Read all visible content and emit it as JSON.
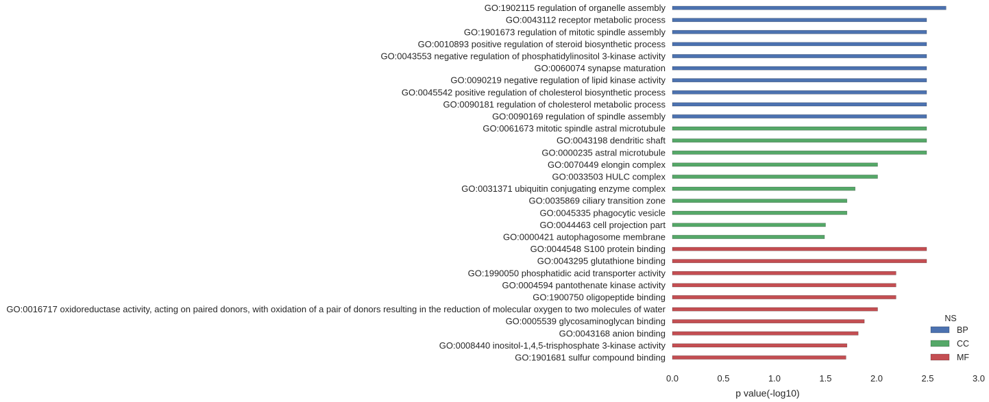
{
  "chart_data": {
    "type": "bar",
    "orientation": "horizontal",
    "xlabel": "p value(-log10)",
    "ylabel": "",
    "xlim": [
      0,
      3.0
    ],
    "xticks": [
      "0.0",
      "0.5",
      "1.0",
      "1.5",
      "2.0",
      "2.5",
      "3.0"
    ],
    "grid": false,
    "legend": {
      "title": "NS",
      "placement": "lower-right",
      "entries": [
        {
          "name": "BP",
          "color": "#4c72b0"
        },
        {
          "name": "CC",
          "color": "#55a868"
        },
        {
          "name": "MF",
          "color": "#c44e52"
        }
      ]
    },
    "bars": [
      {
        "label": "GO:1902115 regulation of organelle assembly",
        "value": 2.68,
        "ns": "BP"
      },
      {
        "label": "GO:0043112 receptor metabolic process",
        "value": 2.49,
        "ns": "BP"
      },
      {
        "label": "GO:1901673 regulation of mitotic spindle assembly",
        "value": 2.49,
        "ns": "BP"
      },
      {
        "label": "GO:0010893 positive regulation of steroid biosynthetic process",
        "value": 2.49,
        "ns": "BP"
      },
      {
        "label": "GO:0043553 negative regulation of phosphatidylinositol 3-kinase activity",
        "value": 2.49,
        "ns": "BP"
      },
      {
        "label": "GO:0060074 synapse maturation",
        "value": 2.49,
        "ns": "BP"
      },
      {
        "label": "GO:0090219 negative regulation of lipid kinase activity",
        "value": 2.49,
        "ns": "BP"
      },
      {
        "label": "GO:0045542 positive regulation of cholesterol biosynthetic process",
        "value": 2.49,
        "ns": "BP"
      },
      {
        "label": "GO:0090181 regulation of cholesterol metabolic process",
        "value": 2.49,
        "ns": "BP"
      },
      {
        "label": "GO:0090169 regulation of spindle assembly",
        "value": 2.49,
        "ns": "BP"
      },
      {
        "label": "GO:0061673 mitotic spindle astral microtubule",
        "value": 2.49,
        "ns": "CC"
      },
      {
        "label": "GO:0043198 dendritic shaft",
        "value": 2.49,
        "ns": "CC"
      },
      {
        "label": "GO:0000235 astral microtubule",
        "value": 2.49,
        "ns": "CC"
      },
      {
        "label": "GO:0070449 elongin complex",
        "value": 2.01,
        "ns": "CC"
      },
      {
        "label": "GO:0033503 HULC complex",
        "value": 2.01,
        "ns": "CC"
      },
      {
        "label": "GO:0031371 ubiquitin conjugating enzyme complex",
        "value": 1.79,
        "ns": "CC"
      },
      {
        "label": "GO:0035869 ciliary transition zone",
        "value": 1.71,
        "ns": "CC"
      },
      {
        "label": "GO:0045335 phagocytic vesicle",
        "value": 1.71,
        "ns": "CC"
      },
      {
        "label": "GO:0044463 cell projection part",
        "value": 1.5,
        "ns": "CC"
      },
      {
        "label": "GO:0000421 autophagosome membrane",
        "value": 1.49,
        "ns": "CC"
      },
      {
        "label": "GO:0044548 S100 protein binding",
        "value": 2.49,
        "ns": "MF"
      },
      {
        "label": "GO:0043295 glutathione binding",
        "value": 2.49,
        "ns": "MF"
      },
      {
        "label": "GO:1990050 phosphatidic acid transporter activity",
        "value": 2.19,
        "ns": "MF"
      },
      {
        "label": "GO:0004594 pantothenate kinase activity",
        "value": 2.19,
        "ns": "MF"
      },
      {
        "label": "GO:1900750 oligopeptide binding",
        "value": 2.19,
        "ns": "MF"
      },
      {
        "label": "GO:0016717 oxidoreductase activity, acting on paired donors, with oxidation of a pair of donors resulting in the reduction of molecular oxygen to two molecules of water",
        "value": 2.01,
        "ns": "MF"
      },
      {
        "label": "GO:0005539 glycosaminoglycan binding",
        "value": 1.88,
        "ns": "MF"
      },
      {
        "label": "GO:0043168 anion binding",
        "value": 1.82,
        "ns": "MF"
      },
      {
        "label": "GO:0008440 inositol-1,4,5-trisphosphate 3-kinase activity",
        "value": 1.71,
        "ns": "MF"
      },
      {
        "label": "GO:1901681 sulfur compound binding",
        "value": 1.7,
        "ns": "MF"
      }
    ]
  }
}
